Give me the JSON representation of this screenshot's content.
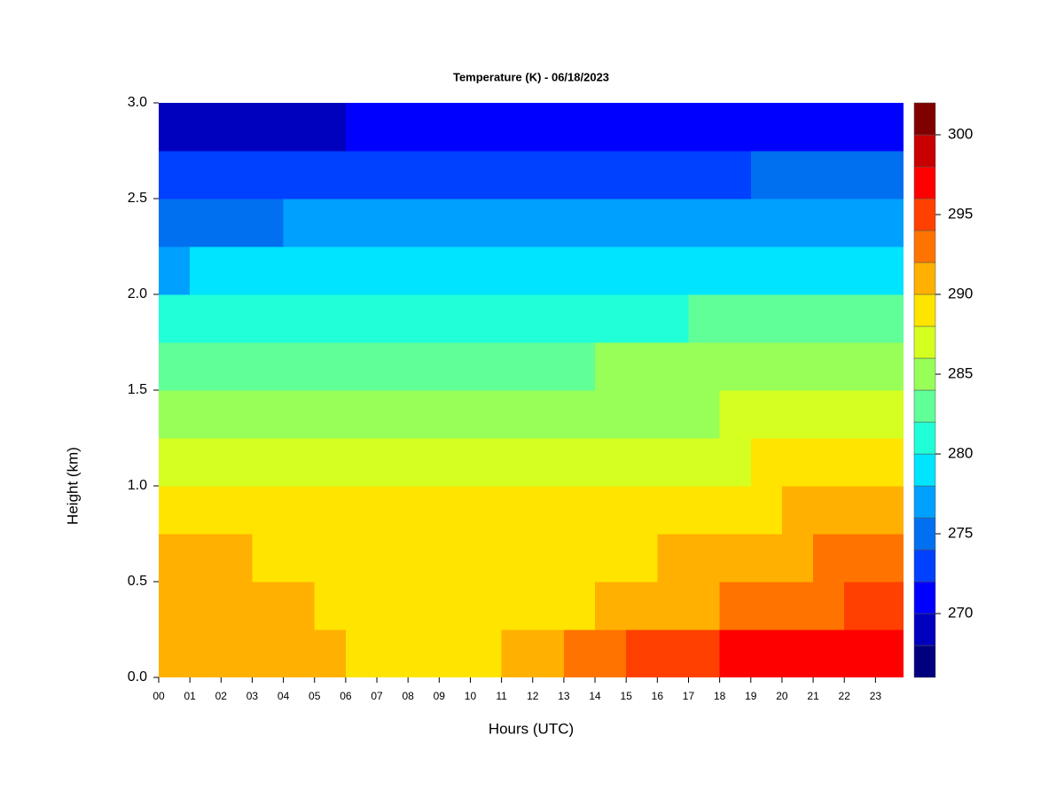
{
  "chart_data": {
    "type": "contour",
    "title": "Temperature (K) - 06/18/2023",
    "x_label": "Hours (UTC)",
    "y_label": "Height (km)",
    "xlim": [
      0,
      23.9
    ],
    "ylim": [
      0,
      3
    ],
    "xticks": [
      {
        "value": 0,
        "label": "00"
      },
      {
        "value": 1,
        "label": "01"
      },
      {
        "value": 2,
        "label": "02"
      },
      {
        "value": 3,
        "label": "03"
      },
      {
        "value": 4,
        "label": "04"
      },
      {
        "value": 5,
        "label": "05"
      },
      {
        "value": 6,
        "label": "06"
      },
      {
        "value": 7,
        "label": "07"
      },
      {
        "value": 8,
        "label": "08"
      },
      {
        "value": 9,
        "label": "09"
      },
      10,
      11,
      12,
      13,
      14,
      15,
      16,
      17,
      18,
      19,
      20,
      21,
      22,
      23
    ],
    "yticks": [
      {
        "value": 0,
        "label": "0.0"
      },
      0.5,
      {
        "value": 1,
        "label": "1.0"
      },
      1.5,
      {
        "value": 2,
        "label": "2.0"
      },
      2.5,
      {
        "value": 3,
        "label": "3.0"
      }
    ],
    "levels": [
      266,
      268,
      270,
      272,
      274,
      276,
      278,
      280,
      282,
      284,
      286,
      288,
      290,
      292,
      294,
      296,
      298,
      300,
      302
    ],
    "colors": [
      "#00007f",
      "#0000bf",
      "#0000ff",
      "#0040ff",
      "#0070f0",
      "#00a0ff",
      "#00e4ff",
      "#20ffd8",
      "#60ff98",
      "#98ff58",
      "#d4ff20",
      "#ffe400",
      "#ffb000",
      "#ff7400",
      "#ff4000",
      "#ff0000",
      "#c80000",
      "#800000"
    ],
    "colorbar_ticks": [
      270,
      275,
      280,
      285,
      290,
      295,
      300
    ],
    "x": [
      0.5,
      1.5,
      2.5,
      3.5,
      4.5,
      5.5,
      6.5,
      7.5,
      8.5,
      9.5,
      10.5,
      11.5,
      12.5,
      13.5,
      14.5,
      15.5,
      16.5,
      17.5,
      18.5,
      19.5,
      20.5,
      21.5,
      22.5,
      23.5
    ],
    "y": [
      0.125,
      0.375,
      0.625,
      0.875,
      1.125,
      1.375,
      1.625,
      1.875,
      2.125,
      2.375,
      2.625,
      2.875
    ],
    "z": [
      [
        290.5,
        290.5,
        290.5,
        290.5,
        290.5,
        290.2,
        289.8,
        289.5,
        289.3,
        289.3,
        289.5,
        290,
        291,
        292,
        293,
        294,
        295,
        295.8,
        296.3,
        296.5,
        297,
        297.3,
        297.3,
        296.8
      ],
      [
        290.8,
        290.8,
        290.8,
        290.6,
        290.3,
        289.8,
        289.5,
        289.3,
        289.2,
        289.2,
        289.2,
        289.3,
        289.5,
        289.8,
        290.3,
        290.8,
        291.3,
        291.8,
        292.3,
        292.8,
        293.3,
        293.8,
        294.2,
        294.5
      ],
      [
        290.2,
        290,
        290,
        289.8,
        289.6,
        289.3,
        289,
        288.9,
        288.8,
        288.8,
        288.7,
        288.7,
        288.8,
        289,
        289.3,
        289.6,
        290,
        290.4,
        290.8,
        291.3,
        291.8,
        292.2,
        292.5,
        292.8
      ],
      [
        289.3,
        289.2,
        289,
        288.8,
        288.7,
        288.5,
        288.3,
        288.2,
        288.1,
        288,
        288,
        288,
        288,
        288.1,
        288.3,
        288.5,
        288.8,
        289.1,
        289.4,
        289.8,
        290.2,
        290.6,
        290.9,
        291.1
      ],
      [
        287.6,
        287.5,
        287.4,
        287.3,
        287.1,
        286.8,
        286.6,
        286.5,
        286.4,
        286.3,
        286.3,
        286.4,
        286.5,
        286.7,
        286.9,
        287.1,
        287.3,
        287.5,
        287.7,
        288,
        288.2,
        288.4,
        288.6,
        288.8
      ],
      [
        285.3,
        285.3,
        285.4,
        285.6,
        285.8,
        285.6,
        285.4,
        285.2,
        285,
        284.9,
        284.9,
        285,
        285.2,
        285.3,
        285.4,
        285.6,
        285.7,
        285.8,
        286,
        286.2,
        286.4,
        286.5,
        286.6,
        286.7
      ],
      [
        283,
        283,
        283,
        283.3,
        283.6,
        283.8,
        283.8,
        283.7,
        283.6,
        283.5,
        283.5,
        283.6,
        283.8,
        283.9,
        284,
        284,
        284.1,
        284.2,
        284.3,
        284.4,
        284.5,
        284.5,
        284.6,
        284.6
      ],
      [
        280.3,
        280.5,
        280.8,
        281.1,
        281.4,
        281.6,
        281.6,
        281.5,
        281.5,
        281.4,
        281.4,
        281.5,
        281.7,
        281.8,
        281.8,
        281.8,
        281.9,
        282,
        282.1,
        282.2,
        282.3,
        282.3,
        282.4,
        282.4
      ],
      [
        277.8,
        278,
        278.2,
        278.5,
        278.8,
        279,
        279,
        278.9,
        278.8,
        278.8,
        278.8,
        278.9,
        279.1,
        279.2,
        279.2,
        279.2,
        279.3,
        279.4,
        279.5,
        279.6,
        279.7,
        279.7,
        279.8,
        279.8
      ],
      [
        275,
        275.2,
        275.5,
        275.8,
        276.1,
        276.3,
        276.3,
        276.2,
        276.1,
        276.1,
        276.1,
        276.2,
        276.4,
        276.5,
        276.5,
        276.5,
        276.6,
        276.7,
        276.8,
        276.9,
        277,
        277,
        277.1,
        277.1
      ],
      [
        272,
        272.3,
        272.6,
        272.9,
        273.2,
        273.4,
        273.4,
        273.3,
        273.2,
        273.2,
        273.2,
        273.3,
        273.5,
        273.6,
        273.6,
        273.6,
        273.7,
        273.8,
        273.9,
        274,
        274.1,
        274.1,
        274.2,
        274.2
      ],
      [
        268,
        268.4,
        268.8,
        269.2,
        269.6,
        269.9,
        270,
        270,
        270,
        270,
        270,
        270.1,
        270.4,
        270.6,
        270.7,
        270.8,
        270.9,
        271,
        271.1,
        271.2,
        271.3,
        271.3,
        271.4,
        271.4
      ]
    ]
  }
}
